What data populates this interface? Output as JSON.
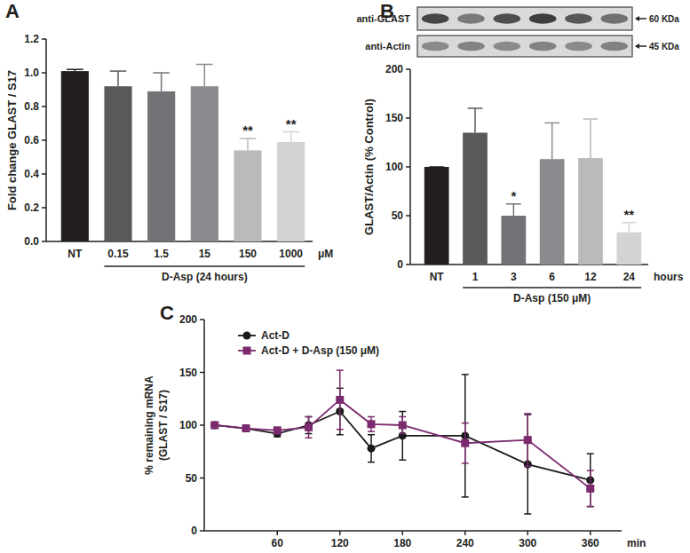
{
  "chart_data": [
    {
      "type": "bar",
      "panel": "A",
      "ylabel": "Fold change GLAST / S17",
      "categories": [
        "NT",
        "0.15",
        "1.5",
        "15",
        "150",
        "1000"
      ],
      "unit": "μM",
      "group_label": "D-Asp (24 hours)",
      "values": [
        1.01,
        0.92,
        0.89,
        0.92,
        0.54,
        0.59
      ],
      "errors": [
        0.01,
        0.09,
        0.11,
        0.13,
        0.07,
        0.06
      ],
      "annotations": [
        null,
        null,
        null,
        null,
        "**",
        "**"
      ],
      "colors": [
        "#231f20",
        "#58595b",
        "#727376",
        "#8a8b8e",
        "#b9babc",
        "#d2d3d5"
      ],
      "ylim": [
        0,
        1.2
      ],
      "yticks": [
        {
          "value": 0,
          "label": "0.0"
        },
        {
          "value": 0.2,
          "label": "0.2"
        },
        {
          "value": 0.4,
          "label": "0.4"
        },
        {
          "value": 0.6,
          "label": "0.6"
        },
        {
          "value": 0.8,
          "label": "0.8"
        },
        {
          "value": 1.0,
          "label": "1.0"
        },
        {
          "value": 1.2,
          "label": "1.2"
        }
      ],
      "grid": false
    },
    {
      "type": "bar",
      "panel": "B",
      "blot": {
        "labels": [
          "anti-GLAST",
          "anti-Actin"
        ],
        "sizes": [
          "60 KDa",
          "45 KDa"
        ]
      },
      "ylabel": "GLAST/Actin (% Control)",
      "categories": [
        "NT",
        "1",
        "3",
        "6",
        "12",
        "24"
      ],
      "unit": "hours",
      "group_label": "D-Asp (150 μM)",
      "values": [
        100,
        135,
        50,
        108,
        109,
        33
      ],
      "errors": [
        0,
        25,
        12,
        37,
        40,
        10
      ],
      "annotations": [
        null,
        null,
        "*",
        null,
        null,
        "**"
      ],
      "colors": [
        "#231f20",
        "#58595b",
        "#727376",
        "#8a8b8e",
        "#b9babc",
        "#d2d3d5"
      ],
      "ylim": [
        0,
        200
      ],
      "yticks": [
        0,
        50,
        100,
        150,
        200
      ],
      "grid": false
    },
    {
      "type": "line",
      "panel": "C",
      "ylabel": [
        "% remaining mRNA",
        "(GLAST / S17)"
      ],
      "xlabel": "min",
      "x": [
        0,
        30,
        60,
        90,
        120,
        150,
        180,
        240,
        300,
        360
      ],
      "xlim": [
        -10,
        390
      ],
      "xticks": [
        60,
        120,
        180,
        240,
        300,
        360
      ],
      "ylim": [
        0,
        200
      ],
      "yticks": [
        0,
        50,
        100,
        150,
        200
      ],
      "legend": "upper left",
      "grid": false,
      "series": [
        {
          "name": "Act-D",
          "color": "#1a1a1a",
          "marker": "circle",
          "values": [
            100,
            97,
            92,
            100,
            113,
            78,
            90,
            90,
            63,
            48
          ],
          "errors": [
            0,
            2,
            3,
            8,
            22,
            13,
            23,
            58,
            47,
            25
          ]
        },
        {
          "name": "Act-D + D-Asp (150 μM)",
          "color": "#7b2a6e",
          "marker": "square",
          "values": [
            100,
            97,
            95,
            98,
            124,
            101,
            100,
            83,
            86,
            40
          ],
          "errors": [
            0,
            2,
            3,
            10,
            28,
            7,
            8,
            19,
            25,
            17
          ]
        }
      ]
    }
  ]
}
